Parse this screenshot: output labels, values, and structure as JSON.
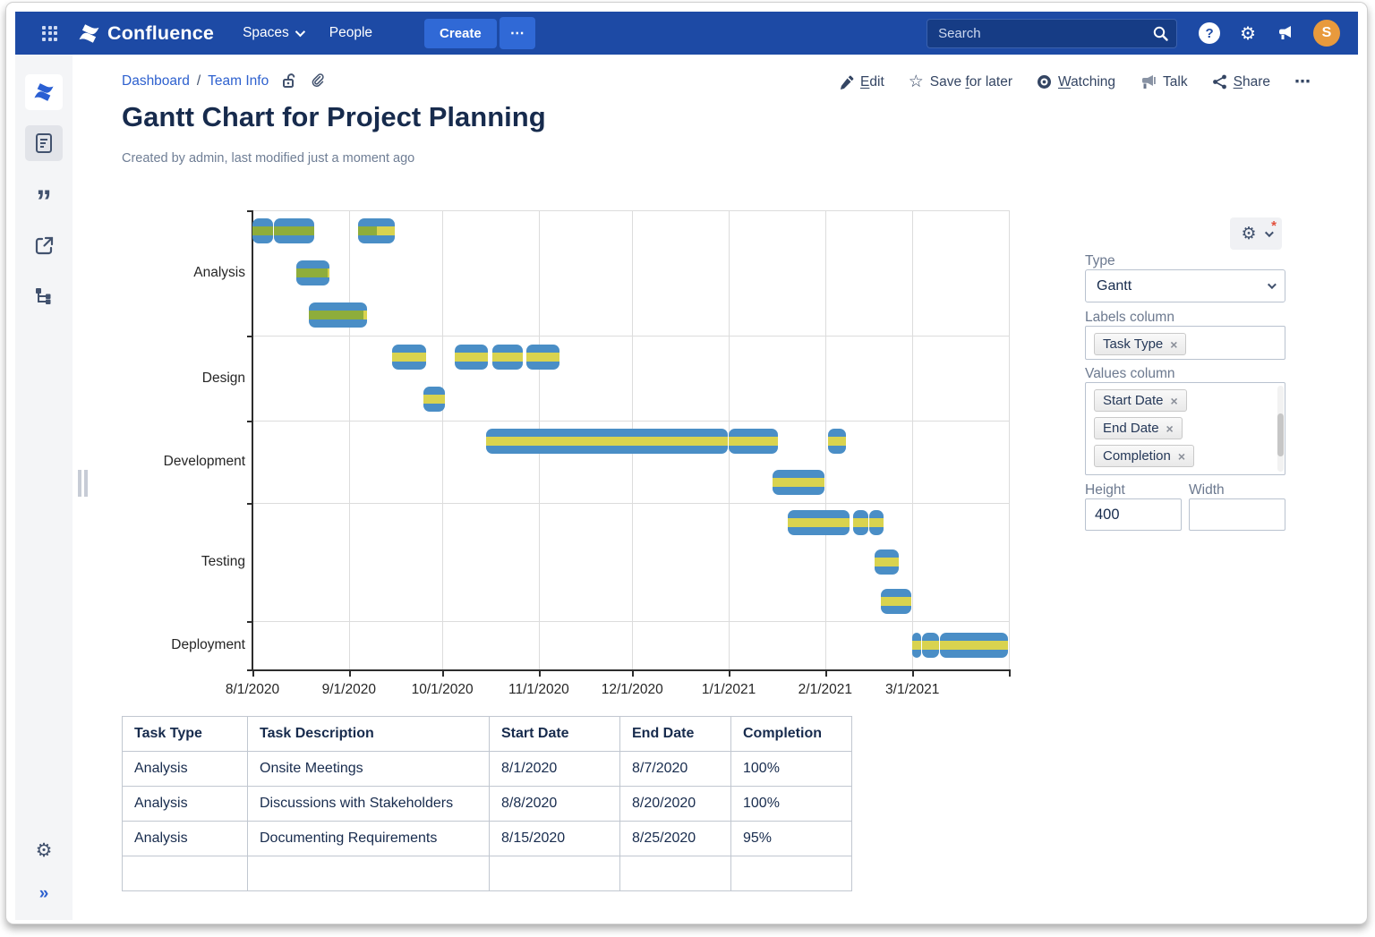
{
  "nav": {
    "logo_text": "Confluence",
    "spaces_label": "Spaces",
    "people_label": "People",
    "create_label": "Create",
    "more_label": "⋯",
    "search_placeholder": "Search",
    "help_label": "?",
    "avatar_initial": "S"
  },
  "sidebar": {
    "collapse_glyph": "»",
    "quote_glyph": "”"
  },
  "page": {
    "breadcrumb": {
      "items": [
        "Dashboard",
        "Team Info"
      ],
      "separator": "/"
    },
    "actions": [
      {
        "icon": "pencil-icon",
        "pre": "",
        "key": "E",
        "post": "dit"
      },
      {
        "icon": "star-icon",
        "pre": "Save ",
        "key": "f",
        "post": "or later"
      },
      {
        "icon": "eye-icon",
        "pre": "",
        "key": "W",
        "post": "atching"
      },
      {
        "icon": "megaphone-icon",
        "label": "Talk"
      },
      {
        "icon": "share-icon",
        "pre": "",
        "key": "S",
        "post": "hare"
      },
      {
        "icon": "ellipsis-icon",
        "label": "⋯"
      }
    ],
    "title": "Gantt Chart for Project Planning",
    "byline": "Created by admin, last modified just a moment ago"
  },
  "chart_data": {
    "type": "gantt",
    "categories": [
      "Analysis",
      "Design",
      "Development",
      "Testing",
      "Deployment"
    ],
    "category_rows": [
      3,
      2,
      2,
      3,
      1
    ],
    "band_heights": [
      140,
      95,
      92,
      132,
      54
    ],
    "x_ticks": [
      "8/1/2020",
      "9/1/2020",
      "10/1/2020",
      "11/1/2020",
      "12/1/2020",
      "1/1/2021",
      "2/1/2021",
      "3/1/2021"
    ],
    "x_range": [
      "8/1/2020",
      "4/1/2021"
    ],
    "colors": {
      "bar": "#4a8ec6",
      "done": "#8ead3b",
      "remaining": "#d9d34f",
      "grid": "#dcdcdc",
      "axis": "#2d2d2d"
    },
    "tasks": [
      {
        "category": "Analysis",
        "row": 0,
        "start": "8/1/2020",
        "end": "8/7/2020",
        "completion": 100
      },
      {
        "category": "Analysis",
        "row": 0,
        "start": "8/8/2020",
        "end": "8/20/2020",
        "completion": 100
      },
      {
        "category": "Analysis",
        "row": 0,
        "start": "9/4/2020",
        "end": "9/15/2020",
        "completion": 50
      },
      {
        "category": "Analysis",
        "row": 1,
        "start": "8/15/2020",
        "end": "8/25/2020",
        "completion": 95
      },
      {
        "category": "Analysis",
        "row": 2,
        "start": "8/19/2020",
        "end": "9/6/2020",
        "completion": 95
      },
      {
        "category": "Design",
        "row": 0,
        "start": "9/15/2020",
        "end": "9/25/2020",
        "completion": 0
      },
      {
        "category": "Design",
        "row": 0,
        "start": "10/5/2020",
        "end": "10/15/2020",
        "completion": 0
      },
      {
        "category": "Design",
        "row": 0,
        "start": "10/17/2020",
        "end": "10/26/2020",
        "completion": 0
      },
      {
        "category": "Design",
        "row": 0,
        "start": "10/28/2020",
        "end": "11/7/2020",
        "completion": 0
      },
      {
        "category": "Design",
        "row": 1,
        "start": "9/25/2020",
        "end": "10/1/2020",
        "completion": 0
      },
      {
        "category": "Development",
        "row": 0,
        "start": "10/15/2020",
        "end": "12/31/2020",
        "completion": 0
      },
      {
        "category": "Development",
        "row": 0,
        "start": "1/1/2021",
        "end": "1/16/2021",
        "completion": 0
      },
      {
        "category": "Development",
        "row": 0,
        "start": "2/2/2021",
        "end": "2/7/2021",
        "completion": 0
      },
      {
        "category": "Development",
        "row": 1,
        "start": "1/15/2021",
        "end": "1/31/2021",
        "completion": 0
      },
      {
        "category": "Testing",
        "row": 0,
        "start": "1/20/2021",
        "end": "2/8/2021",
        "completion": 0
      },
      {
        "category": "Testing",
        "row": 0,
        "start": "2/10/2021",
        "end": "2/14/2021",
        "completion": 0
      },
      {
        "category": "Testing",
        "row": 0,
        "start": "2/15/2021",
        "end": "2/19/2021",
        "completion": 0
      },
      {
        "category": "Testing",
        "row": 1,
        "start": "2/17/2021",
        "end": "2/24/2021",
        "completion": 0
      },
      {
        "category": "Testing",
        "row": 2,
        "start": "2/19/2021",
        "end": "2/28/2021",
        "completion": 0
      },
      {
        "category": "Deployment",
        "row": 0,
        "start": "3/1/2021",
        "end": "3/3/2021",
        "completion": 0
      },
      {
        "category": "Deployment",
        "row": 0,
        "start": "3/4/2021",
        "end": "3/9/2021",
        "completion": 0
      },
      {
        "category": "Deployment",
        "row": 0,
        "start": "3/10/2021",
        "end": "3/31/2021",
        "completion": 0
      }
    ]
  },
  "panel": {
    "settings_asterisk": "*",
    "type_label": "Type",
    "type_value": "Gantt",
    "labels_column_label": "Labels column",
    "labels_chips": [
      "Task Type"
    ],
    "values_column_label": "Values column",
    "values_chips": [
      "Start Date",
      "End Date",
      "Completion"
    ],
    "chip_remove_glyph": "×",
    "height_label": "Height",
    "height_value": "400",
    "width_label": "Width",
    "width_value": ""
  },
  "table": {
    "headers": [
      "Task Type",
      "Task Description",
      "Start Date",
      "End Date",
      "Completion"
    ],
    "rows": [
      [
        "Analysis",
        "Onsite Meetings",
        "8/1/2020",
        "8/7/2020",
        "100%"
      ],
      [
        "Analysis",
        "Discussions with Stakeholders",
        "8/8/2020",
        "8/20/2020",
        "100%"
      ],
      [
        "Analysis",
        "Documenting Requirements",
        "8/15/2020",
        "8/25/2020",
        "95%"
      ]
    ]
  }
}
